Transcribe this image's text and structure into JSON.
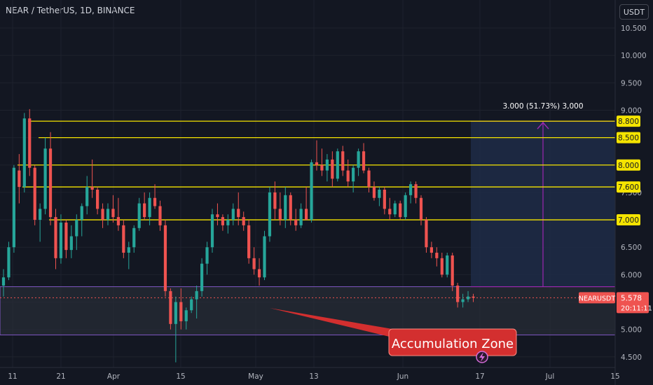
{
  "header": {
    "title": "NEAR / TetherUS, 1D, BINANCE"
  },
  "currency_button": "USDT",
  "colors": {
    "background": "#131722",
    "grid": "#1e222d",
    "bull": "#26a69a",
    "bear": "#ef5350",
    "level_line": "#f5e400",
    "measure": "#9c27b0",
    "zone_fill": "#2a2e39",
    "zone_border": "#7e57c2",
    "target_box": "#1e2b47",
    "callout": "#d32f2f"
  },
  "chart_data": {
    "type": "candlestick",
    "symbol": "NEARUSDT",
    "price_axis": {
      "ylim": [
        4.45,
        10.75
      ],
      "ticks": [
        "10.500",
        "10.000",
        "9.500",
        "9.000",
        "8.500",
        "8.000",
        "7.500",
        "7.000",
        "6.500",
        "6.000",
        "5.500",
        "5.000",
        "4.500"
      ]
    },
    "time_axis": {
      "ticks": [
        "11",
        "21",
        "Apr",
        "15",
        "May",
        "13",
        "Jun",
        "17",
        "Jul",
        "15"
      ]
    },
    "ohlc": [
      [
        5.8,
        6.1,
        5.6,
        5.95
      ],
      [
        5.95,
        6.6,
        5.9,
        6.5
      ],
      [
        6.5,
        8.0,
        6.4,
        7.95
      ],
      [
        7.9,
        8.2,
        7.3,
        7.6
      ],
      [
        7.6,
        8.95,
        7.5,
        8.85
      ],
      [
        8.85,
        9.02,
        7.8,
        7.95
      ],
      [
        7.95,
        8.0,
        6.9,
        7.0
      ],
      [
        7.0,
        7.3,
        6.6,
        7.2
      ],
      [
        7.2,
        8.5,
        7.1,
        8.3
      ],
      [
        8.3,
        8.6,
        6.9,
        7.05
      ],
      [
        7.05,
        7.2,
        6.1,
        6.3
      ],
      [
        6.3,
        7.1,
        6.2,
        6.95
      ],
      [
        6.95,
        7.0,
        6.3,
        6.45
      ],
      [
        6.45,
        6.9,
        6.3,
        6.7
      ],
      [
        6.7,
        7.1,
        6.45,
        7.0
      ],
      [
        7.0,
        7.3,
        6.7,
        7.25
      ],
      [
        7.25,
        7.8,
        7.1,
        7.6
      ],
      [
        7.6,
        8.1,
        7.4,
        7.55
      ],
      [
        7.55,
        7.6,
        7.1,
        7.2
      ],
      [
        7.2,
        7.3,
        6.85,
        7.0
      ],
      [
        7.0,
        7.3,
        6.9,
        7.2
      ],
      [
        7.2,
        7.45,
        6.95,
        7.05
      ],
      [
        7.05,
        7.4,
        6.8,
        6.9
      ],
      [
        6.9,
        7.0,
        6.3,
        6.4
      ],
      [
        6.4,
        6.6,
        6.1,
        6.5
      ],
      [
        6.5,
        6.9,
        6.4,
        6.85
      ],
      [
        6.85,
        7.4,
        6.8,
        7.3
      ],
      [
        7.3,
        7.5,
        7.0,
        7.05
      ],
      [
        7.05,
        7.5,
        6.9,
        7.4
      ],
      [
        7.4,
        7.65,
        7.2,
        7.25
      ],
      [
        7.25,
        7.35,
        6.8,
        6.9
      ],
      [
        6.9,
        7.0,
        5.6,
        5.7
      ],
      [
        5.7,
        5.75,
        5.0,
        5.1
      ],
      [
        5.1,
        5.6,
        4.4,
        5.5
      ],
      [
        5.5,
        5.75,
        5.0,
        5.15
      ],
      [
        5.15,
        5.4,
        5.0,
        5.35
      ],
      [
        5.35,
        5.6,
        5.3,
        5.55
      ],
      [
        5.55,
        5.8,
        5.2,
        5.7
      ],
      [
        5.7,
        6.3,
        5.6,
        6.2
      ],
      [
        6.2,
        6.6,
        6.0,
        6.5
      ],
      [
        6.5,
        7.2,
        6.4,
        7.1
      ],
      [
        7.1,
        7.3,
        6.9,
        7.05
      ],
      [
        7.05,
        7.1,
        6.8,
        6.9
      ],
      [
        6.9,
        7.1,
        6.75,
        7.0
      ],
      [
        7.0,
        7.3,
        6.9,
        7.2
      ],
      [
        7.2,
        7.5,
        6.9,
        7.05
      ],
      [
        7.05,
        7.15,
        6.8,
        6.9
      ],
      [
        6.9,
        7.0,
        6.2,
        6.3
      ],
      [
        6.3,
        6.5,
        6.0,
        6.1
      ],
      [
        6.1,
        6.3,
        5.8,
        5.95
      ],
      [
        5.95,
        6.8,
        5.9,
        6.7
      ],
      [
        6.7,
        7.6,
        6.6,
        7.5
      ],
      [
        7.5,
        7.7,
        7.0,
        7.2
      ],
      [
        7.2,
        7.5,
        6.9,
        7.0
      ],
      [
        7.0,
        7.6,
        6.85,
        7.45
      ],
      [
        7.45,
        7.5,
        6.9,
        7.0
      ],
      [
        7.0,
        7.2,
        6.8,
        6.9
      ],
      [
        6.9,
        7.3,
        6.85,
        7.2
      ],
      [
        7.2,
        7.6,
        7.0,
        7.0
      ],
      [
        7.0,
        8.1,
        6.95,
        8.05
      ],
      [
        8.05,
        8.45,
        7.9,
        8.0
      ],
      [
        8.0,
        8.3,
        7.8,
        7.9
      ],
      [
        7.9,
        8.2,
        7.7,
        8.1
      ],
      [
        8.1,
        8.25,
        7.6,
        7.75
      ],
      [
        7.75,
        8.3,
        7.7,
        8.25
      ],
      [
        8.25,
        8.35,
        7.8,
        7.9
      ],
      [
        7.9,
        8.1,
        7.6,
        7.7
      ],
      [
        7.7,
        8.0,
        7.5,
        7.95
      ],
      [
        7.95,
        8.3,
        7.8,
        8.25
      ],
      [
        8.25,
        8.4,
        7.85,
        7.9
      ],
      [
        7.9,
        7.95,
        7.5,
        7.6
      ],
      [
        7.6,
        7.7,
        7.35,
        7.4
      ],
      [
        7.4,
        7.6,
        7.25,
        7.55
      ],
      [
        7.55,
        7.6,
        7.1,
        7.2
      ],
      [
        7.2,
        7.4,
        7.0,
        7.1
      ],
      [
        7.1,
        7.35,
        7.05,
        7.3
      ],
      [
        7.3,
        7.35,
        7.0,
        7.05
      ],
      [
        7.05,
        7.5,
        7.0,
        7.45
      ],
      [
        7.45,
        7.7,
        7.3,
        7.65
      ],
      [
        7.65,
        7.7,
        7.3,
        7.4
      ],
      [
        7.4,
        7.45,
        6.9,
        7.0
      ],
      [
        7.0,
        7.05,
        6.4,
        6.5
      ],
      [
        6.5,
        6.6,
        6.3,
        6.4
      ],
      [
        6.4,
        6.5,
        6.15,
        6.3
      ],
      [
        6.3,
        6.4,
        5.95,
        6.0
      ],
      [
        6.0,
        6.4,
        5.95,
        6.35
      ],
      [
        6.35,
        6.4,
        5.7,
        5.8
      ],
      [
        5.8,
        5.85,
        5.4,
        5.5
      ],
      [
        5.5,
        5.65,
        5.4,
        5.55
      ],
      [
        5.55,
        5.7,
        5.5,
        5.6
      ],
      [
        5.6,
        5.65,
        5.5,
        5.578
      ]
    ],
    "levels": [
      "8.800",
      "8.500",
      "8.000",
      "7.600",
      "7.000"
    ],
    "measure_label": "3.000 (51.73%) 3,000",
    "accumulation_zone_label": "Accumulation Zone",
    "last_price": {
      "symbol": "NEARUSDT",
      "price": "5.578",
      "countdown": "20:11:11"
    }
  }
}
